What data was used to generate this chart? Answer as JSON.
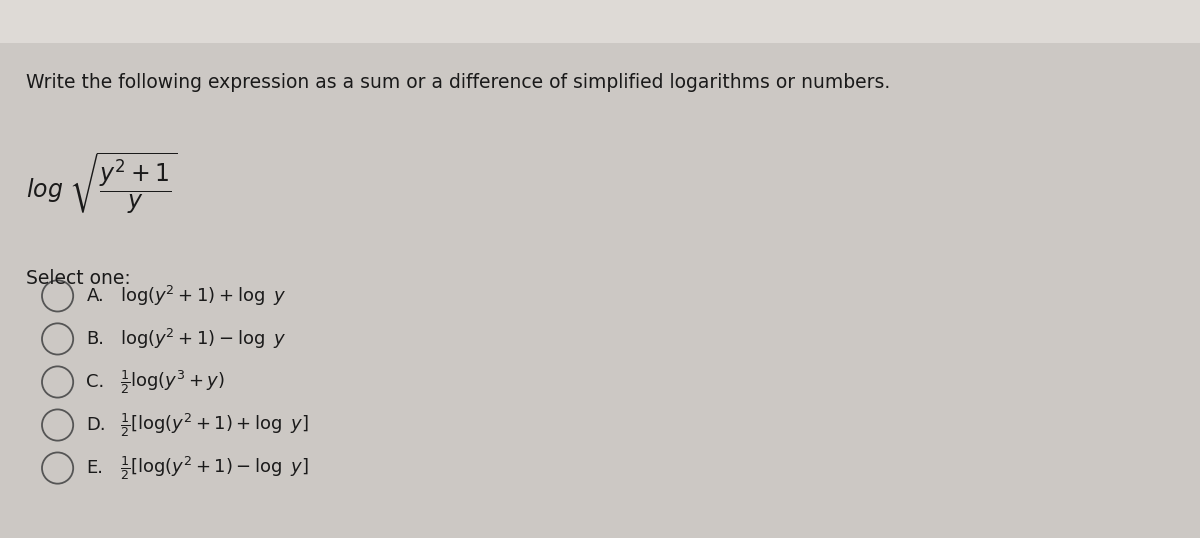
{
  "title": "Write the following expression as a sum or a difference of simplified logarithms or numbers.",
  "bg_color": "#ccc8c4",
  "top_strip_color": "#dedad6",
  "text_color": "#1a1a1a",
  "select_one_label": "Select one:",
  "options": [
    {
      "label": "A.",
      "math": "$\\log(y^2 + 1) + \\log\\ y$"
    },
    {
      "label": "B.",
      "math": "$\\log(y^2 + 1) - \\log\\ y$"
    },
    {
      "label": "C.",
      "math": "$\\frac{1}{2}\\log(y^3 + y)$"
    },
    {
      "label": "D.",
      "math": "$\\frac{1}{2}[\\log(y^2 + 1) + \\log\\ y]$"
    },
    {
      "label": "E.",
      "math": "$\\frac{1}{2}[\\log(y^2 + 1) - \\log\\ y]$"
    }
  ],
  "expression": "$\\log\\sqrt{\\dfrac{y^2+1}{y}}$",
  "figsize": [
    12.0,
    5.38
  ],
  "dpi": 100,
  "title_fontsize": 13.5,
  "option_fontsize": 13,
  "expr_fontsize": 17
}
